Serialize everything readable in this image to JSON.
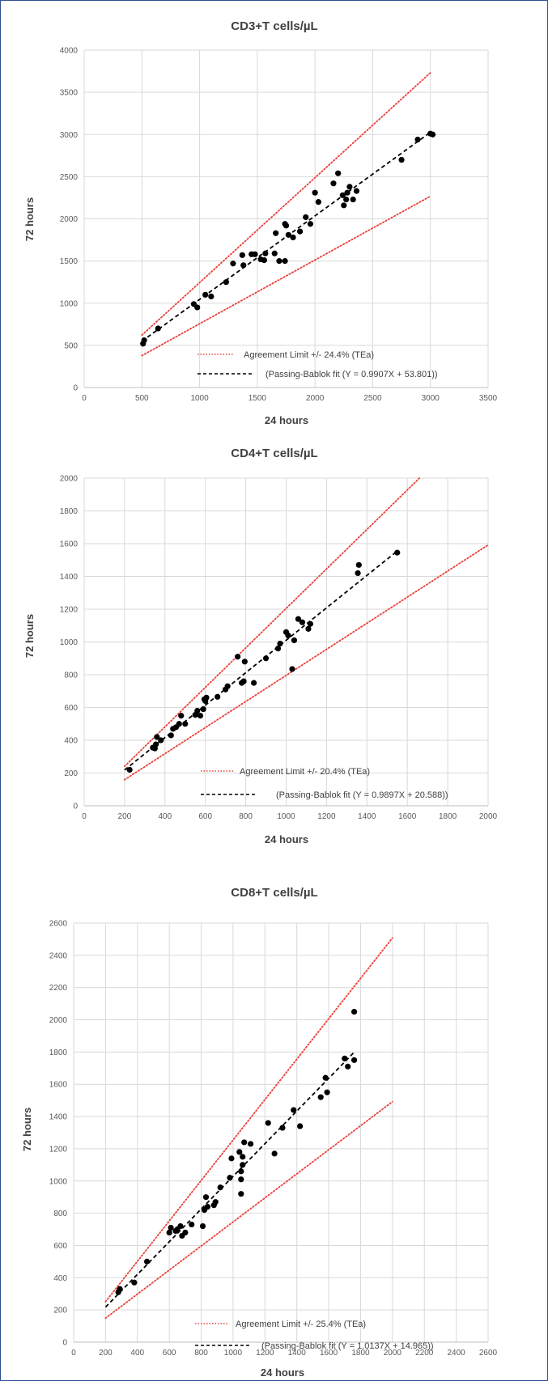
{
  "chart_data": [
    {
      "type": "scatter",
      "title": "CD3+T cells/µL",
      "xlabel": "24 hours",
      "ylabel": "72 hours",
      "xlim": [
        0,
        3500
      ],
      "ylim": [
        0,
        4000
      ],
      "xticks": [
        "0",
        "500",
        "1000",
        "1500",
        "2000",
        "2500",
        "3000",
        "3500"
      ],
      "yticks": [
        "0",
        "500",
        "1000",
        "1500",
        "2000",
        "2500",
        "3000",
        "3500",
        "4000"
      ],
      "grid": true,
      "legend_position": "bottom-right inside plot",
      "legend": [
        "Agreement Limit +/- 24.4% (TEa)",
        "(Passing-Bablok fit (Y = 0.9907X + 53.801))"
      ],
      "series": [
        {
          "name": "Samples",
          "kind": "points",
          "color": "#000000",
          "points": [
            [
              510,
              520
            ],
            [
              520,
              560
            ],
            [
              640,
              700
            ],
            [
              950,
              990
            ],
            [
              980,
              950
            ],
            [
              1050,
              1100
            ],
            [
              1100,
              1080
            ],
            [
              1230,
              1250
            ],
            [
              1290,
              1470
            ],
            [
              1370,
              1570
            ],
            [
              1380,
              1450
            ],
            [
              1450,
              1580
            ],
            [
              1480,
              1580
            ],
            [
              1530,
              1520
            ],
            [
              1560,
              1510
            ],
            [
              1570,
              1590
            ],
            [
              1650,
              1590
            ],
            [
              1660,
              1830
            ],
            [
              1690,
              1500
            ],
            [
              1740,
              1500
            ],
            [
              1740,
              1940
            ],
            [
              1750,
              1920
            ],
            [
              1770,
              1810
            ],
            [
              1810,
              1780
            ],
            [
              1870,
              1850
            ],
            [
              1920,
              2020
            ],
            [
              1960,
              1940
            ],
            [
              2000,
              2310
            ],
            [
              2030,
              2200
            ],
            [
              2160,
              2420
            ],
            [
              2200,
              2540
            ],
            [
              2240,
              2280
            ],
            [
              2250,
              2160
            ],
            [
              2270,
              2230
            ],
            [
              2280,
              2310
            ],
            [
              2300,
              2380
            ],
            [
              2330,
              2230
            ],
            [
              2360,
              2330
            ],
            [
              2750,
              2700
            ],
            [
              2890,
              2940
            ],
            [
              3000,
              3010
            ],
            [
              3020,
              3000
            ]
          ]
        },
        {
          "name": "Agreement Limit +/- 24.4% (TEa)",
          "kind": "limits",
          "color": "#e8413a",
          "lines": [
            [
              [
                500,
                622
              ],
              [
                3000,
                3732
              ]
            ],
            [
              [
                500,
                378
              ],
              [
                3000,
                2268
              ]
            ]
          ]
        },
        {
          "name": "(Passing-Bablok fit (Y = 0.9907X + 53.801))",
          "kind": "fit",
          "color": "#000000",
          "slope": 0.9907,
          "intercept": 53.801,
          "x_range": [
            500,
            3000
          ]
        }
      ]
    },
    {
      "type": "scatter",
      "title": "CD4+T cells/µL",
      "xlabel": "24 hours",
      "ylabel": "72 hours",
      "xlim": [
        0,
        2000
      ],
      "ylim": [
        0,
        2000
      ],
      "xticks": [
        "0",
        "200",
        "400",
        "600",
        "800",
        "1000",
        "1200",
        "1400",
        "1600",
        "1800",
        "2000"
      ],
      "yticks": [
        "0",
        "200",
        "400",
        "600",
        "800",
        "1000",
        "1200",
        "1400",
        "1600",
        "1800",
        "2000"
      ],
      "grid": true,
      "legend_position": "bottom-right inside plot",
      "legend": [
        "Agreement Limit +/- 20.4% (TEa)",
        "(Passing-Bablok fit (Y = 0.9897X + 20.588))"
      ],
      "series": [
        {
          "name": "Samples",
          "kind": "points",
          "color": "#000000",
          "points": [
            [
              225,
              220
            ],
            [
              340,
              355
            ],
            [
              350,
              350
            ],
            [
              355,
              375
            ],
            [
              360,
              420
            ],
            [
              380,
              400
            ],
            [
              430,
              430
            ],
            [
              440,
              470
            ],
            [
              455,
              480
            ],
            [
              470,
              500
            ],
            [
              480,
              550
            ],
            [
              500,
              500
            ],
            [
              550,
              555
            ],
            [
              560,
              580
            ],
            [
              575,
              550
            ],
            [
              590,
              590
            ],
            [
              595,
              650
            ],
            [
              600,
              640
            ],
            [
              605,
              660
            ],
            [
              660,
              665
            ],
            [
              700,
              710
            ],
            [
              710,
              730
            ],
            [
              760,
              910
            ],
            [
              780,
              750
            ],
            [
              790,
              760
            ],
            [
              795,
              880
            ],
            [
              840,
              750
            ],
            [
              900,
              900
            ],
            [
              960,
              960
            ],
            [
              970,
              990
            ],
            [
              1000,
              1060
            ],
            [
              1010,
              1040
            ],
            [
              1030,
              835
            ],
            [
              1040,
              1010
            ],
            [
              1060,
              1140
            ],
            [
              1080,
              1120
            ],
            [
              1110,
              1080
            ],
            [
              1120,
              1110
            ],
            [
              1355,
              1420
            ],
            [
              1360,
              1470
            ],
            [
              1550,
              1545
            ]
          ]
        },
        {
          "name": "Agreement Limit +/- 20.4% (TEa)",
          "kind": "limits",
          "color": "#e8413a",
          "lines": [
            [
              [
                200,
                241
              ],
              [
                1660,
                2000
              ]
            ],
            [
              [
                200,
                159
              ],
              [
                2000,
                1592
              ]
            ]
          ]
        },
        {
          "name": "(Passing-Bablok fit (Y = 0.9897X + 20.588))",
          "kind": "fit",
          "color": "#000000",
          "slope": 0.9897,
          "intercept": 20.588,
          "x_range": [
            200,
            1550
          ]
        }
      ]
    },
    {
      "type": "scatter",
      "title": "CD8+T cells/µL",
      "xlabel": "24 hours",
      "ylabel": "72 hours",
      "xlim": [
        0,
        2600
      ],
      "ylim": [
        0,
        2600
      ],
      "xticks": [
        "0",
        "200",
        "400",
        "600",
        "800",
        "1000",
        "1200",
        "1400",
        "1600",
        "1800",
        "2000",
        "2200",
        "2400",
        "2600"
      ],
      "yticks": [
        "0",
        "200",
        "400",
        "600",
        "800",
        "1000",
        "1200",
        "1400",
        "1600",
        "1800",
        "2000",
        "2200",
        "2400",
        "2600"
      ],
      "grid": true,
      "legend_position": "bottom-right inside plot",
      "legend": [
        "Agreement Limit +/- 25.4% (TEa)",
        "(Passing-Bablok fit (Y = 1.0137X + 14.965))"
      ],
      "series": [
        {
          "name": "Samples",
          "kind": "points",
          "color": "#000000",
          "points": [
            [
              280,
              310
            ],
            [
              290,
              330
            ],
            [
              380,
              370
            ],
            [
              460,
              500
            ],
            [
              600,
              680
            ],
            [
              610,
              710
            ],
            [
              640,
              690
            ],
            [
              650,
              700
            ],
            [
              670,
              720
            ],
            [
              680,
              660
            ],
            [
              700,
              680
            ],
            [
              740,
              730
            ],
            [
              810,
              720
            ],
            [
              820,
              820
            ],
            [
              830,
              900
            ],
            [
              840,
              840
            ],
            [
              880,
              850
            ],
            [
              890,
              870
            ],
            [
              920,
              960
            ],
            [
              980,
              1020
            ],
            [
              990,
              1140
            ],
            [
              1040,
              1180
            ],
            [
              1050,
              920
            ],
            [
              1050,
              1010
            ],
            [
              1050,
              1060
            ],
            [
              1060,
              1100
            ],
            [
              1060,
              1150
            ],
            [
              1070,
              1240
            ],
            [
              1110,
              1230
            ],
            [
              1220,
              1360
            ],
            [
              1260,
              1170
            ],
            [
              1310,
              1330
            ],
            [
              1380,
              1440
            ],
            [
              1420,
              1340
            ],
            [
              1550,
              1520
            ],
            [
              1580,
              1640
            ],
            [
              1590,
              1550
            ],
            [
              1700,
              1760
            ],
            [
              1720,
              1710
            ],
            [
              1760,
              1750
            ],
            [
              1760,
              2050
            ]
          ]
        },
        {
          "name": "Agreement Limit +/- 25.4% (TEa)",
          "kind": "limits",
          "color": "#e8413a",
          "lines": [
            [
              [
                200,
                251
              ],
              [
                2000,
                2508
              ]
            ],
            [
              [
                200,
                149
              ],
              [
                2000,
                1492
              ]
            ]
          ]
        },
        {
          "name": "(Passing-Bablok fit (Y = 1.0137X + 14.965))",
          "kind": "fit",
          "color": "#000000",
          "slope": 1.0137,
          "intercept": 14.965,
          "x_range": [
            200,
            1760
          ]
        }
      ]
    }
  ]
}
